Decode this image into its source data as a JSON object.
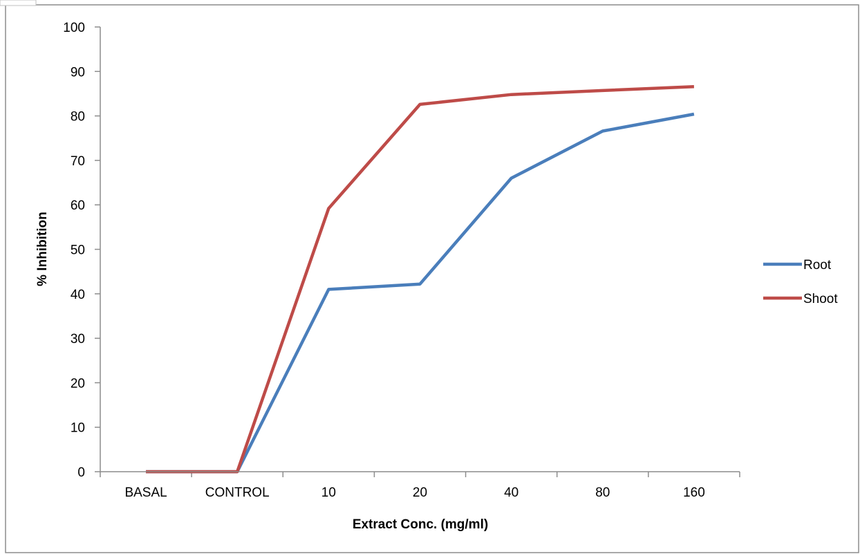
{
  "chart_data": {
    "type": "line",
    "title": "",
    "xlabel": "Extract Conc. (mg/ml)",
    "ylabel": "% Inhibition",
    "categories": [
      "BASAL",
      "CONTROL",
      "10",
      "20",
      "40",
      "80",
      "160"
    ],
    "ylim": [
      0,
      100
    ],
    "yticks": [
      0,
      10,
      20,
      30,
      40,
      50,
      60,
      70,
      80,
      90,
      100
    ],
    "yticks_text": [
      "0",
      "10",
      "20",
      "30",
      "40",
      "50",
      "60",
      "70",
      "80",
      "90",
      "100"
    ],
    "grid": false,
    "legend_position": "right",
    "series": [
      {
        "name": "Root",
        "color": "#4a7ebb",
        "values": [
          0,
          0,
          41,
          42.2,
          66,
          76.6,
          80.4
        ]
      },
      {
        "name": "Shoot",
        "color": "#be4b48",
        "values": [
          0,
          0,
          59.2,
          82.6,
          84.8,
          85.7,
          86.6
        ]
      }
    ]
  }
}
